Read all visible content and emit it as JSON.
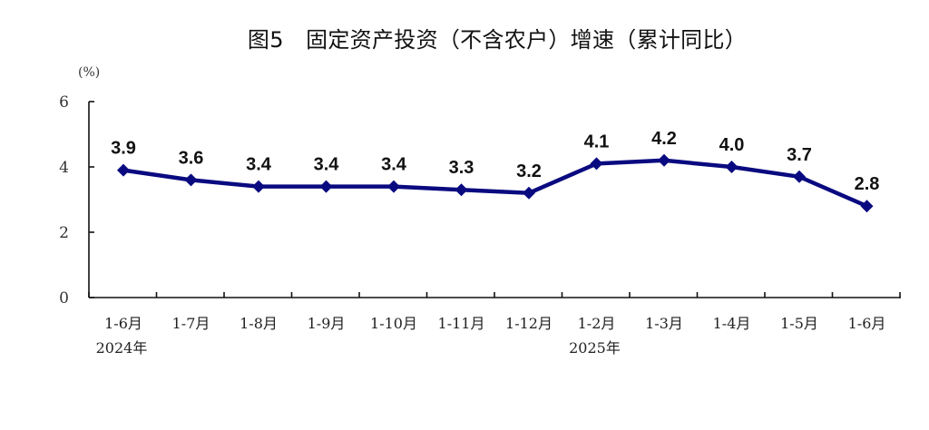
{
  "chart_data": {
    "type": "line",
    "title": "图5　固定资产投资（不含农户）增速（累计同比）",
    "ylabel": "(%)",
    "xlabel": "",
    "categories": [
      "1-6月",
      "1-7月",
      "1-8月",
      "1-9月",
      "1-10月",
      "1-11月",
      "1-12月",
      "1-2月",
      "1-3月",
      "1-4月",
      "1-5月",
      "1-6月"
    ],
    "category_groups": [
      {
        "label": "2024年",
        "start_index": 0
      },
      {
        "label": "2025年",
        "start_index": 7
      }
    ],
    "series": [
      {
        "values": [
          3.9,
          3.6,
          3.4,
          3.4,
          3.4,
          3.3,
          3.2,
          4.1,
          4.2,
          4.0,
          3.7,
          2.8
        ],
        "labels": [
          "3.9",
          "3.6",
          "3.4",
          "3.4",
          "3.4",
          "3.3",
          "3.2",
          "4.1",
          "4.2",
          "4.0",
          "3.7",
          "2.8"
        ]
      }
    ],
    "ylim": [
      0,
      6
    ],
    "yticks": [
      0,
      2,
      4,
      6
    ],
    "grid": false,
    "legend": "none",
    "line_color": "#0a0a80",
    "marker": "diamond"
  }
}
